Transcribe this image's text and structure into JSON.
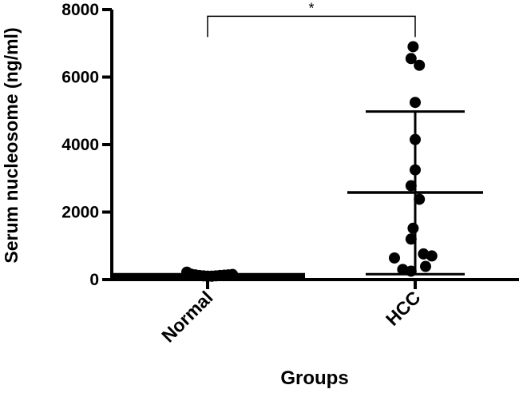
{
  "chart_data": {
    "type": "scatter",
    "title": "",
    "xlabel": "Groups",
    "ylabel": "Serum nucleosome (ng/ml)",
    "categories": [
      "Normal",
      "HCC"
    ],
    "ylim": [
      0,
      8000
    ],
    "yticks": [
      "0",
      "2000",
      "4000",
      "6000",
      "8000"
    ],
    "grid": false,
    "series": [
      {
        "category": "Normal",
        "points": [
          {
            "offset": -0.1,
            "value": 220
          },
          {
            "offset": -0.08,
            "value": 160
          },
          {
            "offset": -0.06,
            "value": 140
          },
          {
            "offset": -0.04,
            "value": 120
          },
          {
            "offset": -0.02,
            "value": 110
          },
          {
            "offset": 0.0,
            "value": 100
          },
          {
            "offset": 0.02,
            "value": 100
          },
          {
            "offset": 0.04,
            "value": 110
          },
          {
            "offset": 0.06,
            "value": 120
          },
          {
            "offset": 0.08,
            "value": 130
          },
          {
            "offset": 0.1,
            "value": 140
          },
          {
            "offset": 0.12,
            "value": 150
          }
        ],
        "mean": 120,
        "error_low": 80,
        "error_high": 160
      },
      {
        "category": "HCC",
        "points": [
          {
            "offset": -0.01,
            "value": 6900
          },
          {
            "offset": -0.02,
            "value": 6550
          },
          {
            "offset": 0.02,
            "value": 6350
          },
          {
            "offset": 0.0,
            "value": 5250
          },
          {
            "offset": 0.0,
            "value": 4150
          },
          {
            "offset": 0.0,
            "value": 3250
          },
          {
            "offset": -0.02,
            "value": 2780
          },
          {
            "offset": 0.02,
            "value": 2380
          },
          {
            "offset": -0.01,
            "value": 1520
          },
          {
            "offset": -0.02,
            "value": 1200
          },
          {
            "offset": 0.04,
            "value": 760
          },
          {
            "offset": 0.08,
            "value": 700
          },
          {
            "offset": -0.1,
            "value": 640
          },
          {
            "offset": 0.05,
            "value": 390
          },
          {
            "offset": -0.06,
            "value": 300
          },
          {
            "offset": -0.02,
            "value": 250
          }
        ],
        "mean": 2580,
        "error_low": 160,
        "error_high": 4980
      }
    ],
    "annotations": [
      {
        "text": "*",
        "between": [
          "Normal",
          "HCC"
        ],
        "at_value": 7850
      }
    ]
  }
}
